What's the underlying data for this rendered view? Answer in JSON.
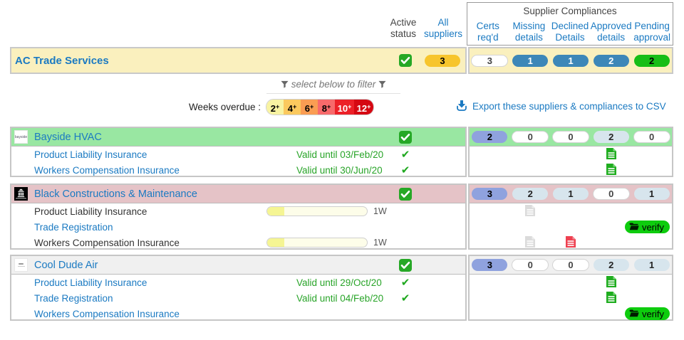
{
  "header": {
    "active_status": "Active status",
    "all_suppliers": "All suppliers",
    "compliances": {
      "title": "Supplier Compliances",
      "columns": [
        "Certs req'd",
        "Missing details",
        "Declined Details",
        "Approved details",
        "Pending approval"
      ]
    }
  },
  "summary": {
    "name": "AC Trade Services",
    "suppliers_count": "3",
    "pills": [
      {
        "value": "3",
        "style": "white"
      },
      {
        "value": "1",
        "style": "steel"
      },
      {
        "value": "1",
        "style": "steel"
      },
      {
        "value": "2",
        "style": "steel"
      },
      {
        "value": "2",
        "style": "green"
      }
    ]
  },
  "filter": {
    "hint": "select below to filter",
    "label": "Weeks overdue :",
    "segments": [
      {
        "label": "2",
        "suffix": "+",
        "bg": "#F8F3A2",
        "fg": "#000000"
      },
      {
        "label": "4",
        "suffix": "+",
        "bg": "#FBC95E",
        "fg": "#000000"
      },
      {
        "label": "6",
        "suffix": "+",
        "bg": "#FA9D53",
        "fg": "#000000"
      },
      {
        "label": "8",
        "suffix": "+",
        "bg": "#F76A6B",
        "fg": "#000000"
      },
      {
        "label": "10",
        "suffix": "+",
        "bg": "#EC2027",
        "fg": "#ffffff"
      },
      {
        "label": "12",
        "suffix": "+",
        "bg": "#D50812",
        "fg": "#ffffff"
      }
    ],
    "export_label": "Export these suppliers & compliances to CSV"
  },
  "verify_label": "verify",
  "colors": {
    "link_blue": "#1b7ac2",
    "valid_green": "#28a428",
    "checkbox_green": "#26a826",
    "doc_green": "#1fad1f",
    "doc_gray": "#dbdbdb",
    "doc_red": "#ee4050",
    "verify_green": "#0ecc0e",
    "summary_row_bg": "#faf0be"
  },
  "suppliers": [
    {
      "name": "Bayside HVAC",
      "logo": "bayside",
      "logo_text": "bayside",
      "header_color": "#99e7a2",
      "active": true,
      "pills": [
        {
          "value": "2",
          "style": "peri"
        },
        {
          "value": "0",
          "style": "white"
        },
        {
          "value": "0",
          "style": "white"
        },
        {
          "value": "2",
          "style": "lblue"
        },
        {
          "value": "0",
          "style": "white"
        }
      ],
      "rows": [
        {
          "name": "Product Liability Insurance",
          "link": true,
          "valid_until": "Valid until 03/Feb/20",
          "check": true,
          "cells": {
            "approved": "doc-green"
          }
        },
        {
          "name": "Workers Compensation Insurance",
          "link": true,
          "valid_until": "Valid until 30/Jun/20",
          "check": true,
          "cells": {
            "approved": "doc-green"
          }
        }
      ]
    },
    {
      "name": "Black Constructions & Maintenance",
      "logo": "building",
      "header_color": "#e5c3c7",
      "active": true,
      "pills": [
        {
          "value": "3",
          "style": "peri"
        },
        {
          "value": "2",
          "style": "lblue"
        },
        {
          "value": "1",
          "style": "lblue"
        },
        {
          "value": "0",
          "style": "white"
        },
        {
          "value": "1",
          "style": "lblue"
        }
      ],
      "rows": [
        {
          "name": "Product Liability Insurance",
          "link": false,
          "progress": {
            "percent": 17,
            "label": "1W"
          },
          "cells": {
            "missing": "doc-gray"
          }
        },
        {
          "name": "Trade Registration",
          "link": true,
          "cells": {
            "pending": "verify"
          }
        },
        {
          "name": "Workers Compensation Insurance",
          "link": false,
          "progress": {
            "percent": 17,
            "label": "1W"
          },
          "cells": {
            "missing": "doc-gray",
            "declined": "doc-red"
          }
        }
      ]
    },
    {
      "name": "Cool Dude Air",
      "logo": "cooldude",
      "header_color": "#f0f0f0",
      "active": true,
      "pills": [
        {
          "value": "3",
          "style": "peri"
        },
        {
          "value": "0",
          "style": "white"
        },
        {
          "value": "0",
          "style": "white"
        },
        {
          "value": "2",
          "style": "lblue"
        },
        {
          "value": "1",
          "style": "lblue"
        }
      ],
      "rows": [
        {
          "name": "Product Liability Insurance",
          "link": true,
          "valid_until": "Valid until 29/Oct/20",
          "check": true,
          "cells": {
            "approved": "doc-green"
          }
        },
        {
          "name": "Trade Registration",
          "link": true,
          "valid_until": "Valid until 04/Feb/20",
          "check": true,
          "cells": {
            "approved": "doc-green"
          }
        },
        {
          "name": "Workers Compensation Insurance",
          "link": true,
          "cells": {
            "pending": "verify"
          }
        }
      ]
    }
  ]
}
